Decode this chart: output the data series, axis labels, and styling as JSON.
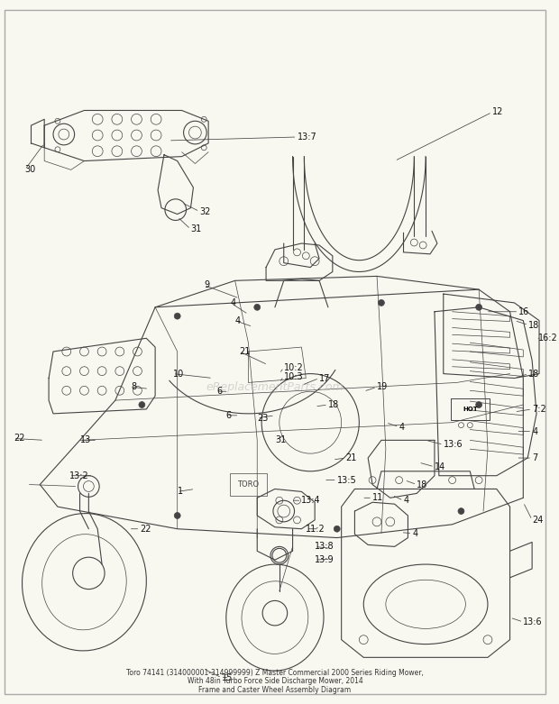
{
  "bg_color": "#f8f8f0",
  "line_color": "#444444",
  "text_color": "#111111",
  "watermark": "eReplacementParts.com",
  "watermark_color": "#bbbbbb",
  "title1": "Toro 74141 (314000001-314999999) Z Master Commercial 2000 Series Riding Mower,",
  "title2": "With 48in Turbo Force Side Discharge Mower, 2014",
  "title3": "Frame and Caster Wheel Assembly Diagram",
  "font_size": 7.0,
  "lw_main": 0.8,
  "lw_thin": 0.5
}
